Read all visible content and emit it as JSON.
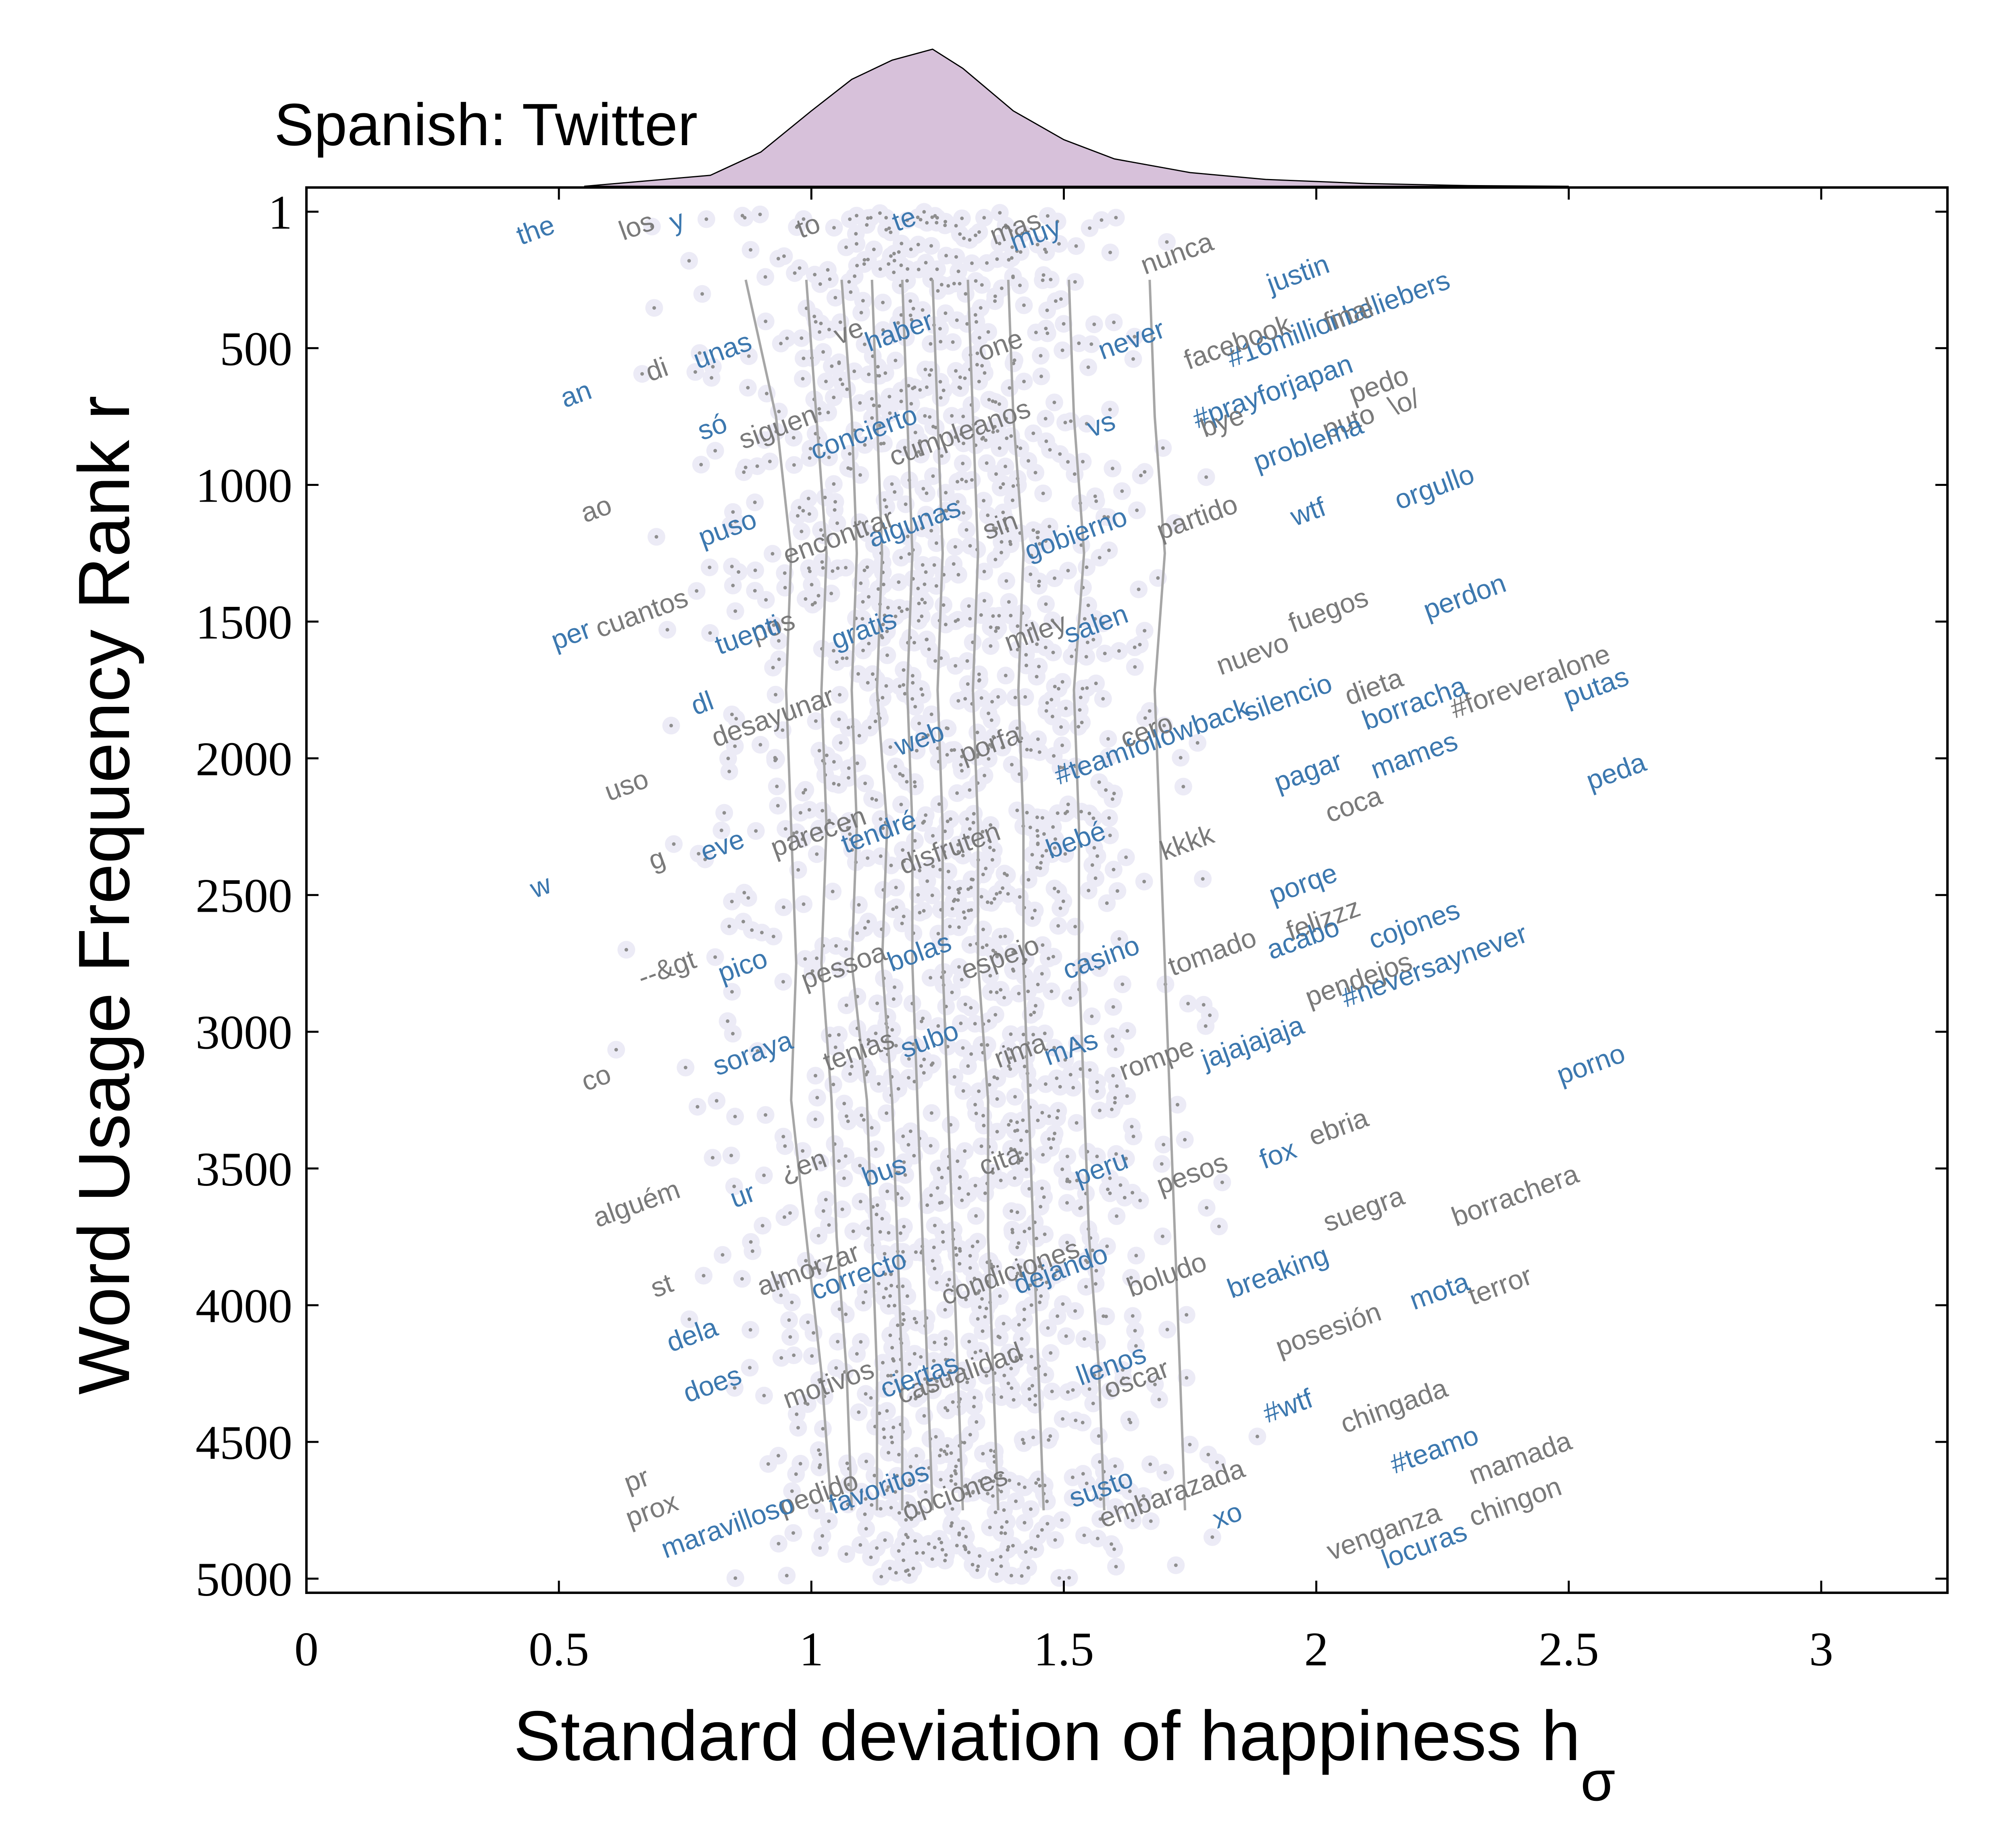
{
  "chart_data": {
    "type": "scatter",
    "title": "Spanish: Twitter",
    "xlabel": "Standard deviation of happiness h",
    "xlabel_subscript": "σ",
    "ylabel": "Word Usage Frequency Rank r",
    "xlim": [
      0,
      3.25
    ],
    "ylim": [
      5000,
      1
    ],
    "y_inverted": true,
    "x_ticks": [
      "0",
      "0.5",
      "1",
      "1.5",
      "2",
      "2.5",
      "3"
    ],
    "x_tick_values": [
      0,
      0.5,
      1,
      1.5,
      2,
      2.5,
      3
    ],
    "y_ticks": [
      "1",
      "500",
      "1000",
      "1500",
      "2000",
      "2500",
      "3000",
      "3500",
      "4000",
      "4500",
      "5000"
    ],
    "y_tick_values": [
      1,
      500,
      1000,
      1500,
      2000,
      2500,
      3000,
      3500,
      4000,
      4500,
      5000
    ],
    "grid": false,
    "colors": {
      "point": "#ECEBF6",
      "dot": "#8E8E8E",
      "percentile_line": "#A6A6A6",
      "label_blue": "#3C78AF",
      "label_gray": "#7A7A7A",
      "density_fill": "#D7C1DA"
    },
    "density": {
      "x": [
        0.55,
        0.8,
        0.9,
        1.0,
        1.08,
        1.16,
        1.24,
        1.3,
        1.4,
        1.5,
        1.6,
        1.75,
        1.9,
        2.1,
        2.3,
        2.5
      ],
      "y": [
        0.0,
        0.08,
        0.25,
        0.55,
        0.78,
        0.92,
        1.0,
        0.86,
        0.55,
        0.34,
        0.2,
        0.1,
        0.05,
        0.02,
        0.005,
        0.0
      ]
    },
    "percentile_lines": {
      "ranks": [
        250,
        750,
        1250,
        1750,
        2250,
        2750,
        3250,
        3750,
        4250,
        4750
      ],
      "series": [
        [
          0.87,
          0.93,
          0.96,
          0.95,
          0.96,
          0.97,
          0.96,
          0.99,
          1.02,
          1.04
        ],
        [
          0.99,
          1.01,
          1.03,
          1.02,
          1.03,
          1.02,
          1.04,
          1.05,
          1.07,
          1.08
        ],
        [
          1.06,
          1.08,
          1.09,
          1.08,
          1.09,
          1.08,
          1.11,
          1.12,
          1.13,
          1.13
        ],
        [
          1.12,
          1.13,
          1.14,
          1.13,
          1.15,
          1.14,
          1.16,
          1.17,
          1.18,
          1.18
        ],
        [
          1.18,
          1.19,
          1.2,
          1.19,
          1.2,
          1.2,
          1.21,
          1.22,
          1.23,
          1.24
        ],
        [
          1.24,
          1.25,
          1.26,
          1.25,
          1.26,
          1.26,
          1.27,
          1.28,
          1.29,
          1.3
        ],
        [
          1.31,
          1.32,
          1.33,
          1.32,
          1.33,
          1.33,
          1.35,
          1.35,
          1.36,
          1.37
        ],
        [
          1.39,
          1.4,
          1.42,
          1.41,
          1.42,
          1.42,
          1.43,
          1.44,
          1.45,
          1.46
        ],
        [
          1.51,
          1.52,
          1.54,
          1.52,
          1.53,
          1.53,
          1.54,
          1.55,
          1.57,
          1.58
        ],
        [
          1.67,
          1.68,
          1.7,
          1.68,
          1.69,
          1.7,
          1.71,
          1.72,
          1.73,
          1.74
        ]
      ]
    },
    "words": [
      {
        "text": "the",
        "x": 0.46,
        "r": 100,
        "c": "b"
      },
      {
        "text": "los",
        "x": 0.66,
        "r": 85,
        "c": "g"
      },
      {
        "text": "y",
        "x": 0.74,
        "r": 65,
        "c": "b"
      },
      {
        "text": "to",
        "x": 1.0,
        "r": 85,
        "c": "g"
      },
      {
        "text": "te",
        "x": 1.19,
        "r": 60,
        "c": "b"
      },
      {
        "text": "mas",
        "x": 1.41,
        "r": 90,
        "c": "g"
      },
      {
        "text": "muy",
        "x": 1.45,
        "r": 115,
        "c": "b"
      },
      {
        "text": "nunca",
        "x": 1.73,
        "r": 185,
        "c": "g"
      },
      {
        "text": "justin",
        "x": 1.97,
        "r": 260,
        "c": "b"
      },
      {
        "text": "#16millionbeliebers",
        "x": 2.05,
        "r": 425,
        "c": "b"
      },
      {
        "text": "final",
        "x": 2.07,
        "r": 410,
        "c": "g"
      },
      {
        "text": "facebook",
        "x": 1.85,
        "r": 510,
        "c": "g"
      },
      {
        "text": "never",
        "x": 1.64,
        "r": 500,
        "c": "b"
      },
      {
        "text": "one",
        "x": 1.38,
        "r": 520,
        "c": "g"
      },
      {
        "text": "haber",
        "x": 1.18,
        "r": 470,
        "c": "b"
      },
      {
        "text": "ve",
        "x": 1.08,
        "r": 470,
        "c": "g"
      },
      {
        "text": "unas",
        "x": 0.83,
        "r": 540,
        "c": "b"
      },
      {
        "text": "di",
        "x": 0.7,
        "r": 610,
        "c": "g"
      },
      {
        "text": "an",
        "x": 0.54,
        "r": 700,
        "c": "b"
      },
      {
        "text": "#prayforjapan",
        "x": 1.92,
        "r": 690,
        "c": "b"
      },
      {
        "text": "pedo",
        "x": 2.13,
        "r": 665,
        "c": "g"
      },
      {
        "text": "\\o/",
        "x": 2.18,
        "r": 730,
        "c": "g"
      },
      {
        "text": "puto",
        "x": 2.07,
        "r": 800,
        "c": "g"
      },
      {
        "text": "problema",
        "x": 1.99,
        "r": 880,
        "c": "b"
      },
      {
        "text": "bye",
        "x": 1.82,
        "r": 800,
        "c": "g"
      },
      {
        "text": "vs",
        "x": 1.58,
        "r": 810,
        "c": "b"
      },
      {
        "text": "cumpleanos",
        "x": 1.3,
        "r": 840,
        "c": "g"
      },
      {
        "text": "concierto",
        "x": 1.11,
        "r": 840,
        "c": "b"
      },
      {
        "text": "siguen",
        "x": 0.94,
        "r": 820,
        "c": "g"
      },
      {
        "text": "só",
        "x": 0.81,
        "r": 820,
        "c": "b"
      },
      {
        "text": "orgullo",
        "x": 2.24,
        "r": 1040,
        "c": "b"
      },
      {
        "text": "wtf",
        "x": 1.99,
        "r": 1130,
        "c": "b"
      },
      {
        "text": "partido",
        "x": 1.77,
        "r": 1150,
        "c": "g"
      },
      {
        "text": "gobierno",
        "x": 1.53,
        "r": 1210,
        "c": "b"
      },
      {
        "text": "sin",
        "x": 1.38,
        "r": 1180,
        "c": "g"
      },
      {
        "text": "algunas",
        "x": 1.21,
        "r": 1170,
        "c": "b"
      },
      {
        "text": "encontrar",
        "x": 1.06,
        "r": 1220,
        "c": "g"
      },
      {
        "text": "puso",
        "x": 0.84,
        "r": 1190,
        "c": "b"
      },
      {
        "text": "ao",
        "x": 0.58,
        "r": 1120,
        "c": "g"
      },
      {
        "text": "perdon",
        "x": 2.3,
        "r": 1440,
        "c": "b"
      },
      {
        "text": "fuegos",
        "x": 2.03,
        "r": 1490,
        "c": "g"
      },
      {
        "text": "nuevo",
        "x": 1.88,
        "r": 1650,
        "c": "g"
      },
      {
        "text": "salen",
        "x": 1.57,
        "r": 1540,
        "c": "b"
      },
      {
        "text": "miley",
        "x": 1.45,
        "r": 1570,
        "c": "g"
      },
      {
        "text": "gratis",
        "x": 1.11,
        "r": 1560,
        "c": "b"
      },
      {
        "text": "pos",
        "x": 0.93,
        "r": 1550,
        "c": "g"
      },
      {
        "text": "tuenti",
        "x": 0.88,
        "r": 1580,
        "c": "b"
      },
      {
        "text": "cuantos",
        "x": 0.67,
        "r": 1500,
        "c": "g"
      },
      {
        "text": "per",
        "x": 0.53,
        "r": 1580,
        "c": "b"
      },
      {
        "text": "#foreveralone",
        "x": 2.43,
        "r": 1750,
        "c": "g"
      },
      {
        "text": "putas",
        "x": 2.56,
        "r": 1770,
        "c": "b"
      },
      {
        "text": "dieta",
        "x": 2.12,
        "r": 1770,
        "c": "g"
      },
      {
        "text": "borracha",
        "x": 2.2,
        "r": 1830,
        "c": "b"
      },
      {
        "text": "silencio",
        "x": 1.95,
        "r": 1810,
        "c": "b"
      },
      {
        "text": "#teamfollowback",
        "x": 1.68,
        "r": 1970,
        "c": "b"
      },
      {
        "text": "cero",
        "x": 1.67,
        "r": 1930,
        "c": "g"
      },
      {
        "text": "porfa",
        "x": 1.36,
        "r": 1980,
        "c": "g"
      },
      {
        "text": "web",
        "x": 1.22,
        "r": 1960,
        "c": "b"
      },
      {
        "text": "desayunar",
        "x": 0.93,
        "r": 1880,
        "c": "g"
      },
      {
        "text": "dl",
        "x": 0.79,
        "r": 1830,
        "c": "b"
      },
      {
        "text": "uso",
        "x": 0.64,
        "r": 2130,
        "c": "g"
      },
      {
        "text": "mames",
        "x": 2.2,
        "r": 2020,
        "c": "b"
      },
      {
        "text": "pagar",
        "x": 1.99,
        "r": 2080,
        "c": "b"
      },
      {
        "text": "coca",
        "x": 2.08,
        "r": 2200,
        "c": "g"
      },
      {
        "text": "peda",
        "x": 2.6,
        "r": 2080,
        "c": "b"
      },
      {
        "text": "kkkk",
        "x": 1.75,
        "r": 2340,
        "c": "g"
      },
      {
        "text": "bebé",
        "x": 1.53,
        "r": 2330,
        "c": "b"
      },
      {
        "text": "disfruten",
        "x": 1.28,
        "r": 2360,
        "c": "g"
      },
      {
        "text": "tendré",
        "x": 1.14,
        "r": 2300,
        "c": "b"
      },
      {
        "text": "parecen",
        "x": 1.02,
        "r": 2300,
        "c": "g"
      },
      {
        "text": "eve",
        "x": 0.83,
        "r": 2350,
        "c": "b"
      },
      {
        "text": "g",
        "x": 0.7,
        "r": 2400,
        "c": "g"
      },
      {
        "text": "w",
        "x": 0.47,
        "r": 2500,
        "c": "b"
      },
      {
        "text": "porqe",
        "x": 1.98,
        "r": 2490,
        "c": "b"
      },
      {
        "text": "felizzz",
        "x": 2.02,
        "r": 2620,
        "c": "g"
      },
      {
        "text": "cojones",
        "x": 2.2,
        "r": 2640,
        "c": "b"
      },
      {
        "text": "#neversaynever",
        "x": 2.24,
        "r": 2790,
        "c": "b"
      },
      {
        "text": "acabo",
        "x": 1.98,
        "r": 2690,
        "c": "b"
      },
      {
        "text": "pendejos",
        "x": 2.09,
        "r": 2840,
        "c": "g"
      },
      {
        "text": "tomado",
        "x": 1.8,
        "r": 2740,
        "c": "g"
      },
      {
        "text": "casino",
        "x": 1.58,
        "r": 2760,
        "c": "b"
      },
      {
        "text": "espejo",
        "x": 1.38,
        "r": 2760,
        "c": "g"
      },
      {
        "text": "bolas",
        "x": 1.22,
        "r": 2740,
        "c": "b"
      },
      {
        "text": "pessoa",
        "x": 1.07,
        "r": 2790,
        "c": "g"
      },
      {
        "text": "pico",
        "x": 0.87,
        "r": 2790,
        "c": "b"
      },
      {
        "text": "--&gt",
        "x": 0.72,
        "r": 2800,
        "c": "g"
      },
      {
        "text": "jajajajaja",
        "x": 1.88,
        "r": 3070,
        "c": "b"
      },
      {
        "text": "rompe",
        "x": 1.69,
        "r": 3130,
        "c": "g"
      },
      {
        "text": "mAs",
        "x": 1.52,
        "r": 3090,
        "c": "b"
      },
      {
        "text": "rima",
        "x": 1.42,
        "r": 3100,
        "c": "g"
      },
      {
        "text": "subo",
        "x": 1.24,
        "r": 3060,
        "c": "b"
      },
      {
        "text": "tenias",
        "x": 1.1,
        "r": 3100,
        "c": "g"
      },
      {
        "text": "soraya",
        "x": 0.89,
        "r": 3110,
        "c": "b"
      },
      {
        "text": "co",
        "x": 0.58,
        "r": 3200,
        "c": "g"
      },
      {
        "text": "porno",
        "x": 2.55,
        "r": 3150,
        "c": "b"
      },
      {
        "text": "ebria",
        "x": 2.05,
        "r": 3380,
        "c": "g"
      },
      {
        "text": "fox",
        "x": 1.93,
        "r": 3480,
        "c": "b"
      },
      {
        "text": "pesos",
        "x": 1.76,
        "r": 3550,
        "c": "g"
      },
      {
        "text": "peru",
        "x": 1.58,
        "r": 3530,
        "c": "b"
      },
      {
        "text": "cita",
        "x": 1.38,
        "r": 3500,
        "c": "g"
      },
      {
        "text": "bus",
        "x": 1.15,
        "r": 3540,
        "c": "b"
      },
      {
        "text": "¿en",
        "x": 0.99,
        "r": 3520,
        "c": "g"
      },
      {
        "text": "ur",
        "x": 0.87,
        "r": 3630,
        "c": "b"
      },
      {
        "text": "alguém",
        "x": 0.66,
        "r": 3660,
        "c": "g"
      },
      {
        "text": "borrachera",
        "x": 2.4,
        "r": 3630,
        "c": "g"
      },
      {
        "text": "suegra",
        "x": 2.1,
        "r": 3680,
        "c": "g"
      },
      {
        "text": "breaking",
        "x": 1.93,
        "r": 3910,
        "c": "b"
      },
      {
        "text": "boludo",
        "x": 1.71,
        "r": 3920,
        "c": "g"
      },
      {
        "text": "condiciones",
        "x": 1.4,
        "r": 3910,
        "c": "g"
      },
      {
        "text": "dejando",
        "x": 1.5,
        "r": 3900,
        "c": "b"
      },
      {
        "text": "correcto",
        "x": 1.1,
        "r": 3920,
        "c": "b"
      },
      {
        "text": "almorzar",
        "x": 1.0,
        "r": 3900,
        "c": "g"
      },
      {
        "text": "st",
        "x": 0.71,
        "r": 3960,
        "c": "g"
      },
      {
        "text": "terror",
        "x": 2.37,
        "r": 3960,
        "c": "g"
      },
      {
        "text": "mota",
        "x": 2.25,
        "r": 3980,
        "c": "b"
      },
      {
        "text": "posesión",
        "x": 2.03,
        "r": 4120,
        "c": "g"
      },
      {
        "text": "llenos",
        "x": 1.6,
        "r": 4250,
        "c": "b"
      },
      {
        "text": "oscar",
        "x": 1.65,
        "r": 4300,
        "c": "g"
      },
      {
        "text": "casualidad",
        "x": 1.3,
        "r": 4280,
        "c": "g"
      },
      {
        "text": "ciertas",
        "x": 1.22,
        "r": 4290,
        "c": "b"
      },
      {
        "text": "motivos",
        "x": 1.04,
        "r": 4320,
        "c": "g"
      },
      {
        "text": "does",
        "x": 0.81,
        "r": 4320,
        "c": "b"
      },
      {
        "text": "dela",
        "x": 0.77,
        "r": 4140,
        "c": "b"
      },
      {
        "text": "chingada",
        "x": 2.16,
        "r": 4400,
        "c": "g"
      },
      {
        "text": "#wtf",
        "x": 1.95,
        "r": 4400,
        "c": "b"
      },
      {
        "text": "#teamo",
        "x": 2.24,
        "r": 4560,
        "c": "b"
      },
      {
        "text": "mamada",
        "x": 2.41,
        "r": 4590,
        "c": "g"
      },
      {
        "text": "embarazada",
        "x": 1.72,
        "r": 4720,
        "c": "g"
      },
      {
        "text": "susto",
        "x": 1.58,
        "r": 4700,
        "c": "b"
      },
      {
        "text": "opciones",
        "x": 1.29,
        "r": 4720,
        "c": "g"
      },
      {
        "text": "favoritos",
        "x": 1.14,
        "r": 4700,
        "c": "b"
      },
      {
        "text": "pedido",
        "x": 1.02,
        "r": 4720,
        "c": "g"
      },
      {
        "text": "maravilloso",
        "x": 0.84,
        "r": 4840,
        "c": "b"
      },
      {
        "text": "prox",
        "x": 0.69,
        "r": 4780,
        "c": "g"
      },
      {
        "text": "pr",
        "x": 0.66,
        "r": 4670,
        "c": "g"
      },
      {
        "text": "xo",
        "x": 1.83,
        "r": 4800,
        "c": "b"
      },
      {
        "text": "venganza",
        "x": 2.14,
        "r": 4860,
        "c": "g"
      },
      {
        "text": "chingon",
        "x": 2.4,
        "r": 4750,
        "c": "g"
      },
      {
        "text": "locuras",
        "x": 2.22,
        "r": 4910,
        "c": "b"
      }
    ]
  }
}
